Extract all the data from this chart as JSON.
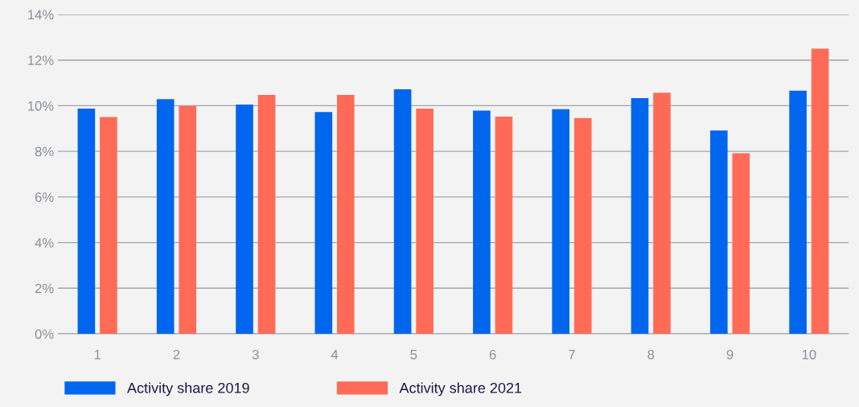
{
  "chart_data": {
    "type": "bar",
    "categories": [
      "1",
      "2",
      "3",
      "4",
      "5",
      "6",
      "7",
      "8",
      "9",
      "10"
    ],
    "series": [
      {
        "name": "Activity share 2019",
        "color": "#0066ee",
        "values": [
          9.87,
          10.29,
          10.05,
          9.72,
          10.72,
          9.79,
          9.85,
          10.33,
          8.91,
          10.66
        ]
      },
      {
        "name": "Activity share 2021",
        "color": "#ff6b57",
        "values": [
          9.5,
          10.0,
          10.47,
          10.47,
          9.87,
          9.52,
          9.46,
          10.57,
          7.92,
          12.5
        ]
      }
    ],
    "ylim": [
      0,
      14
    ],
    "yticks": [
      {
        "value": 0,
        "label": "0%"
      },
      {
        "value": 2,
        "label": "2%"
      },
      {
        "value": 4,
        "label": "4%"
      },
      {
        "value": 6,
        "label": "6%"
      },
      {
        "value": 8,
        "label": "8%"
      },
      {
        "value": 10,
        "label": "10%"
      },
      {
        "value": 12,
        "label": "12%"
      },
      {
        "value": 14,
        "label": "14%"
      }
    ],
    "grid": "y",
    "legend": "bottom left"
  }
}
